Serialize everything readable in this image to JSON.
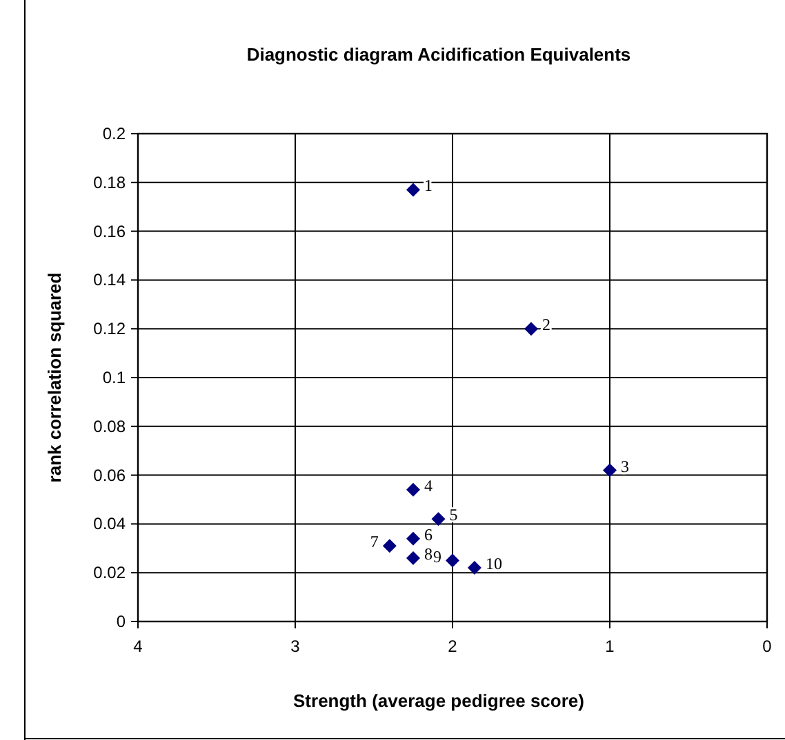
{
  "chart_data": {
    "type": "scatter",
    "title": "Diagnostic diagram Acidification Equivalents",
    "xlabel": "Strength (average pedigree score)",
    "ylabel": "rank correlation squared",
    "x": [
      2.25,
      1.5,
      1.0,
      2.25,
      2.09,
      2.25,
      2.4,
      2.25,
      2.0,
      1.86
    ],
    "series": [
      {
        "color": "#000080",
        "values": [
          0.177,
          0.12,
          0.062,
          0.054,
          0.042,
          0.034,
          0.031,
          0.026,
          0.025,
          0.022
        ]
      }
    ],
    "annotations": [
      {
        "text": "1",
        "x": 2.25,
        "y": 0.177
      },
      {
        "text": "2",
        "x": 1.5,
        "y": 0.12
      },
      {
        "text": "3",
        "x": 1.0,
        "y": 0.062
      },
      {
        "text": "4",
        "x": 2.25,
        "y": 0.054
      },
      {
        "text": "5",
        "x": 2.09,
        "y": 0.042
      },
      {
        "text": "6",
        "x": 2.25,
        "y": 0.034
      },
      {
        "text": "7",
        "x": 2.4,
        "y": 0.031
      },
      {
        "text": "8",
        "x": 2.25,
        "y": 0.026
      },
      {
        "text": "9",
        "x": 2.0,
        "y": 0.025
      },
      {
        "text": "10",
        "x": 1.86,
        "y": 0.022
      }
    ],
    "xlim": [
      4,
      0
    ],
    "xticks": [
      4,
      3,
      2,
      1,
      0
    ],
    "ylim": [
      0,
      0.2
    ],
    "yticks": [
      0,
      0.02,
      0.04,
      0.06,
      0.08,
      0.1,
      0.12,
      0.14,
      0.16,
      0.18,
      0.2
    ],
    "grid": true,
    "marker": "diamond"
  }
}
